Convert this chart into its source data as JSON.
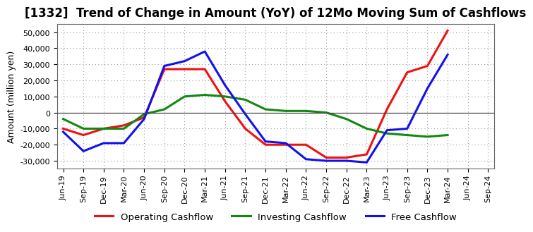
{
  "title": "[1332]  Trend of Change in Amount (YoY) of 12Mo Moving Sum of Cashflows",
  "ylabel": "Amount (million yen)",
  "x_labels": [
    "Jun-19",
    "Sep-19",
    "Dec-19",
    "Mar-20",
    "Jun-20",
    "Sep-20",
    "Dec-20",
    "Mar-21",
    "Jun-21",
    "Sep-21",
    "Dec-21",
    "Mar-22",
    "Jun-22",
    "Sep-22",
    "Dec-22",
    "Mar-23",
    "Jun-23",
    "Sep-23",
    "Dec-23",
    "Mar-24",
    "Jun-24",
    "Sep-24"
  ],
  "operating": [
    -10000,
    -14000,
    -10000,
    -8000,
    -3000,
    27000,
    27000,
    27000,
    7000,
    -10000,
    -20000,
    -20000,
    -20000,
    -28000,
    -28000,
    -26000,
    2000,
    25000,
    29000,
    51000,
    null,
    null
  ],
  "investing": [
    -4000,
    -10000,
    -10000,
    -10000,
    -1000,
    2000,
    10000,
    11000,
    10000,
    8000,
    2000,
    1000,
    1000,
    0,
    -4000,
    -10000,
    -13000,
    -14000,
    -15000,
    -14000,
    null,
    null
  ],
  "free": [
    -12000,
    -24000,
    -19000,
    -19000,
    -4000,
    29000,
    32000,
    38000,
    17000,
    -1000,
    -18000,
    -19000,
    -29000,
    -30000,
    -30000,
    -31000,
    -11000,
    -10000,
    15000,
    36000,
    null,
    null
  ],
  "ylim": [
    -35000,
    55000
  ],
  "yticks": [
    -30000,
    -20000,
    -10000,
    0,
    10000,
    20000,
    30000,
    40000,
    50000
  ],
  "operating_color": "#ee1111",
  "investing_color": "#118811",
  "free_color": "#1111ee",
  "bg_color": "#ffffff",
  "plot_bg_color": "#ffffff",
  "grid_color": "#999999",
  "linewidth": 2.2,
  "title_fontsize": 12,
  "axis_label_fontsize": 9,
  "tick_fontsize": 8,
  "legend_fontsize": 9.5
}
